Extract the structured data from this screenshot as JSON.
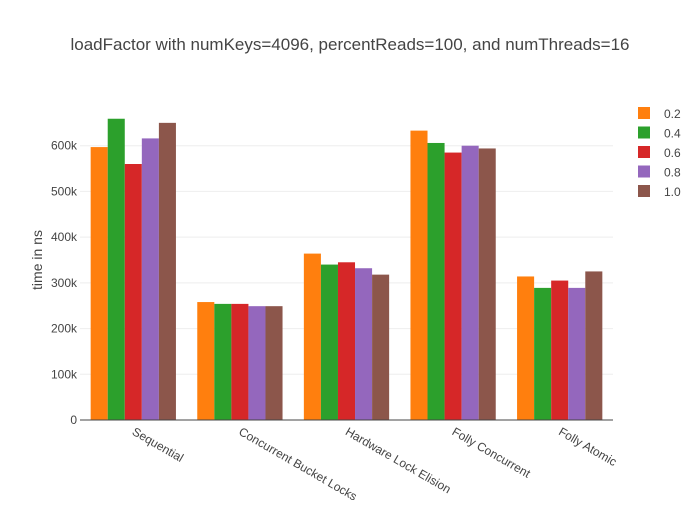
{
  "chart_data": {
    "type": "bar",
    "title": "loadFactor with numKeys=4096, percentReads=100, and numThreads=16",
    "xlabel": "",
    "ylabel": "time in ns",
    "categories": [
      "Sequential",
      "Concurrent Bucket Locks",
      "Hardware Lock Elision",
      "Folly Concurrent",
      "Folly Atomic"
    ],
    "ylim": [
      0,
      700000
    ],
    "yticks": [
      0,
      100000,
      200000,
      300000,
      400000,
      500000,
      600000
    ],
    "ytick_labels": [
      "0",
      "100k",
      "200k",
      "300k",
      "400k",
      "500k",
      "600k"
    ],
    "grid": true,
    "legend_position": "right",
    "series": [
      {
        "name": "0.2",
        "color": "#ff7f0e",
        "values": [
          597000,
          258000,
          364000,
          633000,
          314000
        ]
      },
      {
        "name": "0.4",
        "color": "#2ca02c",
        "values": [
          659000,
          254000,
          340000,
          606000,
          289000
        ]
      },
      {
        "name": "0.6",
        "color": "#d62728",
        "values": [
          560000,
          254000,
          345000,
          585000,
          305000
        ]
      },
      {
        "name": "0.8",
        "color": "#9467bd",
        "values": [
          616000,
          249000,
          332000,
          600000,
          289000
        ]
      },
      {
        "name": "1.0",
        "color": "#8c564b",
        "values": [
          650000,
          249000,
          318000,
          594000,
          325000
        ]
      }
    ]
  }
}
